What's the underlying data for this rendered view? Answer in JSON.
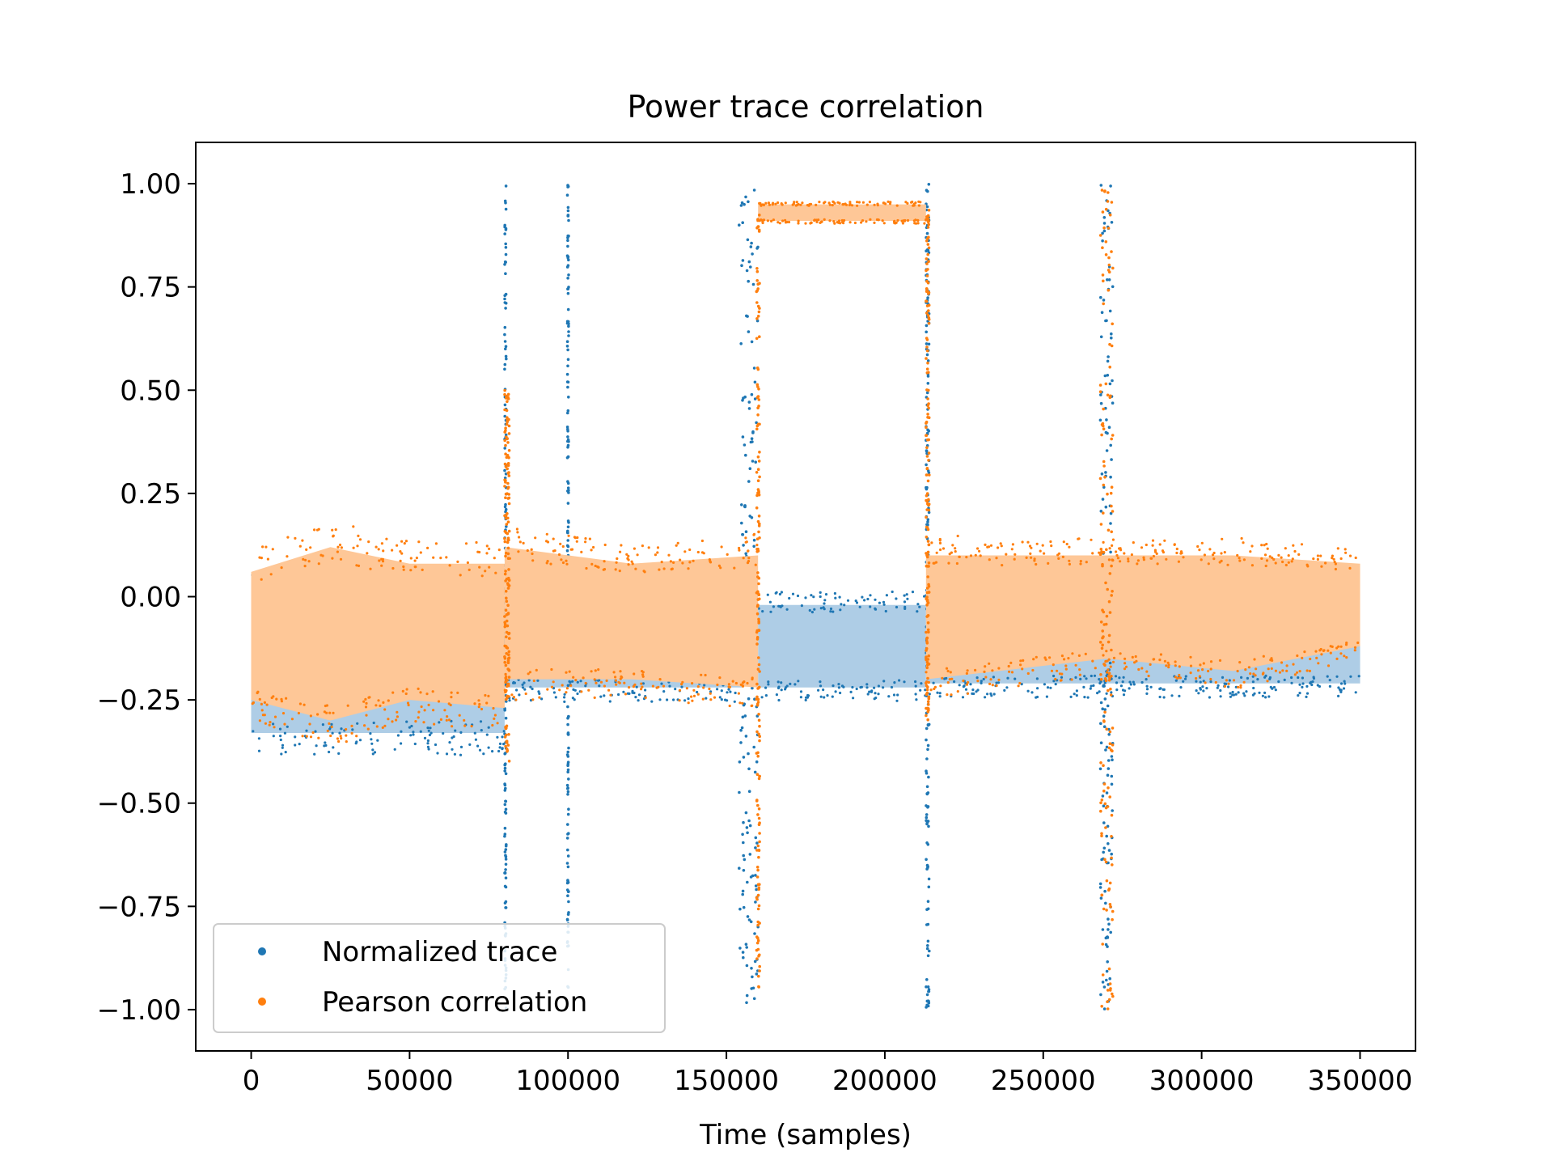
{
  "chart_data": {
    "type": "scatter",
    "title": "Power trace correlation",
    "xlabel": "Time (samples)",
    "ylabel": "",
    "xlim": [
      -17500,
      367500
    ],
    "ylim": [
      -1.1,
      1.1
    ],
    "x_ticks": [
      0,
      50000,
      100000,
      150000,
      200000,
      250000,
      300000,
      350000
    ],
    "x_tick_labels": [
      "0",
      "50000",
      "100000",
      "150000",
      "200000",
      "250000",
      "300000",
      "350000"
    ],
    "y_ticks": [
      1.0,
      0.75,
      0.5,
      0.25,
      0.0,
      -0.25,
      -0.5,
      -0.75,
      -1.0
    ],
    "y_tick_labels": [
      "1.00",
      "0.75",
      "0.50",
      "0.25",
      "0.00",
      "−0.25",
      "−0.50",
      "−0.75",
      "−1.00"
    ],
    "grid": false,
    "legend": {
      "placement": "lower-left"
    },
    "series": [
      {
        "name": "Normalized trace",
        "color": "#1f77b4",
        "fill_color": "#aecde6",
        "band_segments": [
          {
            "x": [
              0,
              80000
            ],
            "y_low": [
              -0.33,
              -0.33
            ],
            "y_high": [
              0.0,
              0.0
            ]
          },
          {
            "x": [
              80000,
              155000
            ],
            "y_low": [
              -0.22,
              -0.22
            ],
            "y_high": [
              0.0,
              0.0
            ]
          },
          {
            "x": [
              160000,
              213000
            ],
            "y_low": [
              -0.22,
              -0.22
            ],
            "y_high": [
              -0.02,
              -0.02
            ]
          },
          {
            "x": [
              213000,
              350000
            ],
            "y_low": [
              -0.21,
              -0.21
            ],
            "y_high": [
              0.0,
              0.0
            ]
          }
        ],
        "bursts": [
          {
            "x": [
              80000,
              80500
            ],
            "y_range": [
              -1.0,
              1.0
            ]
          },
          {
            "x": [
              99800,
              100200
            ],
            "y_range": [
              -0.95,
              1.0
            ]
          },
          {
            "x": [
              154000,
              160000
            ],
            "y_range": [
              -1.0,
              1.0
            ]
          },
          {
            "x": [
              213000,
              214000
            ],
            "y_range": [
              -1.0,
              1.0
            ]
          },
          {
            "x": [
              268000,
              272000
            ],
            "y_range": [
              -1.0,
              1.0
            ]
          }
        ]
      },
      {
        "name": "Pearson correlation",
        "color": "#ff7f0e",
        "fill_color": "#fec797",
        "band_segments": [
          {
            "x": [
              0,
              25000,
              50000,
              80000
            ],
            "y_low": [
              -0.25,
              -0.3,
              -0.25,
              -0.27
            ],
            "y_high": [
              0.06,
              0.12,
              0.08,
              0.08
            ]
          },
          {
            "x": [
              80000,
              120000,
              160000
            ],
            "y_low": [
              -0.2,
              -0.2,
              -0.22
            ],
            "y_high": [
              0.12,
              0.08,
              0.1
            ]
          },
          {
            "x": [
              160000,
              213000
            ],
            "y_low": [
              0.91,
              0.91
            ],
            "y_high": [
              0.95,
              0.95
            ]
          },
          {
            "x": [
              213000,
              270000,
              310000,
              350000
            ],
            "y_low": [
              -0.2,
              -0.15,
              -0.18,
              -0.12
            ],
            "y_high": [
              0.1,
              0.1,
              0.1,
              0.08
            ]
          }
        ],
        "bursts": [
          {
            "x": [
              80000,
              81500
            ],
            "y_range": [
              -0.4,
              0.5
            ]
          },
          {
            "x": [
              159500,
              160500
            ],
            "y_range": [
              -0.95,
              0.93
            ]
          },
          {
            "x": [
              213000,
              214000
            ],
            "y_range": [
              -0.3,
              0.94
            ]
          },
          {
            "x": [
              268000,
              272000
            ],
            "y_range": [
              -1.0,
              1.0
            ]
          }
        ]
      }
    ]
  }
}
